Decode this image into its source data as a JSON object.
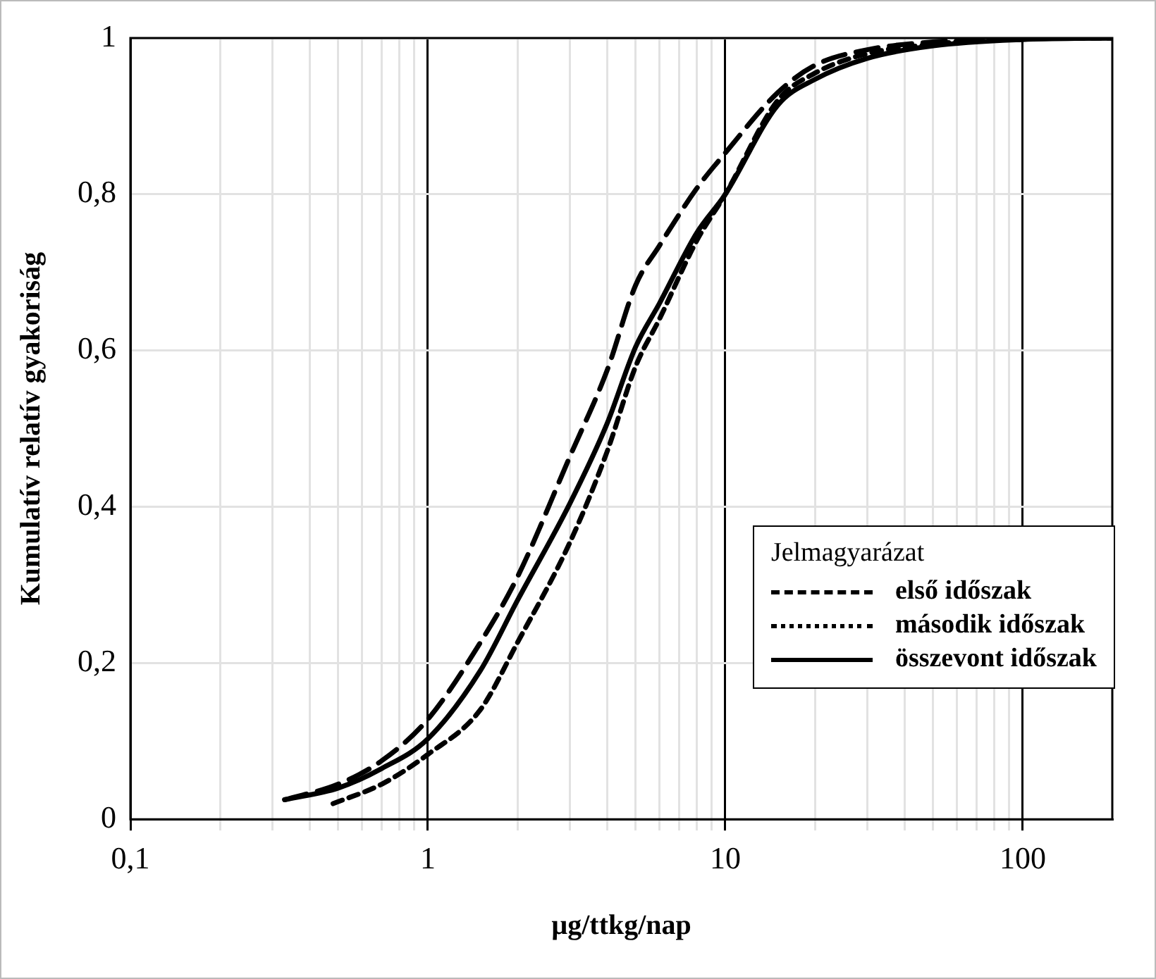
{
  "chart_data": {
    "type": "line",
    "xlabel": "µg/ttkg/nap",
    "ylabel": "Kumulatív relatív gyakoriság",
    "legend_title": "Jelmagyarázat",
    "legend": "right",
    "log": "x",
    "grid": true,
    "marker": "none",
    "xlim": [
      0.1,
      200
    ],
    "ylim": [
      0,
      1
    ],
    "xticks": [
      {
        "value": 0.1,
        "label": "0,1"
      },
      {
        "value": 0.2,
        "label": null
      },
      {
        "value": 0.3,
        "label": null
      },
      {
        "value": 0.4,
        "label": null
      },
      {
        "value": 0.5,
        "label": null
      },
      {
        "value": 0.6,
        "label": null
      },
      {
        "value": 0.7,
        "label": null
      },
      {
        "value": 0.8,
        "label": null
      },
      {
        "value": 0.9,
        "label": null
      },
      1,
      {
        "value": 2,
        "label": null
      },
      {
        "value": 3,
        "label": null
      },
      {
        "value": 4,
        "label": null
      },
      {
        "value": 5,
        "label": null
      },
      {
        "value": 6,
        "label": null
      },
      {
        "value": 7,
        "label": null
      },
      {
        "value": 8,
        "label": null
      },
      {
        "value": 9,
        "label": null
      },
      10,
      {
        "value": 20,
        "label": null
      },
      {
        "value": 30,
        "label": null
      },
      {
        "value": 40,
        "label": null
      },
      {
        "value": 50,
        "label": null
      },
      {
        "value": 60,
        "label": null
      },
      {
        "value": 70,
        "label": null
      },
      {
        "value": 80,
        "label": null
      },
      {
        "value": 90,
        "label": null
      },
      100
    ],
    "yticks": [
      0,
      {
        "value": 0.2,
        "label": "0,2"
      },
      {
        "value": 0.4,
        "label": "0,4"
      },
      {
        "value": 0.6,
        "label": "0,6"
      },
      {
        "value": 0.8,
        "label": "0,8"
      },
      1
    ],
    "series": [
      {
        "name": "első időszak",
        "color": "#000000",
        "line_style": "dashed",
        "x": [
          0.33,
          0.5,
          0.7,
          1,
          1.5,
          2,
          3,
          4,
          5,
          6,
          8,
          10,
          15,
          20,
          30,
          50,
          100,
          200
        ],
        "values": [
          0.025,
          0.045,
          0.075,
          0.128,
          0.226,
          0.31,
          0.464,
          0.574,
          0.684,
          0.734,
          0.807,
          0.853,
          0.93,
          0.965,
          0.985,
          0.995,
          1,
          1
        ]
      },
      {
        "name": "második időszak",
        "color": "#000000",
        "line_style": "dotted",
        "x": [
          0.48,
          0.7,
          1,
          1.5,
          2,
          3,
          4,
          5,
          6,
          8,
          10,
          15,
          20,
          30,
          50,
          100,
          200
        ],
        "values": [
          0.02,
          0.045,
          0.083,
          0.14,
          0.226,
          0.354,
          0.47,
          0.58,
          0.64,
          0.74,
          0.8,
          0.92,
          0.955,
          0.98,
          0.992,
          1,
          1
        ]
      },
      {
        "name": "összevont időszak",
        "color": "#000000",
        "line_style": "solid",
        "x": [
          0.33,
          0.5,
          0.7,
          1,
          1.5,
          2,
          3,
          4,
          5,
          6,
          8,
          10,
          15,
          20,
          30,
          50,
          100,
          200
        ],
        "values": [
          0.025,
          0.04,
          0.065,
          0.103,
          0.19,
          0.28,
          0.404,
          0.506,
          0.605,
          0.66,
          0.75,
          0.8,
          0.914,
          0.947,
          0.974,
          0.99,
          0.998,
          1
        ]
      }
    ]
  }
}
